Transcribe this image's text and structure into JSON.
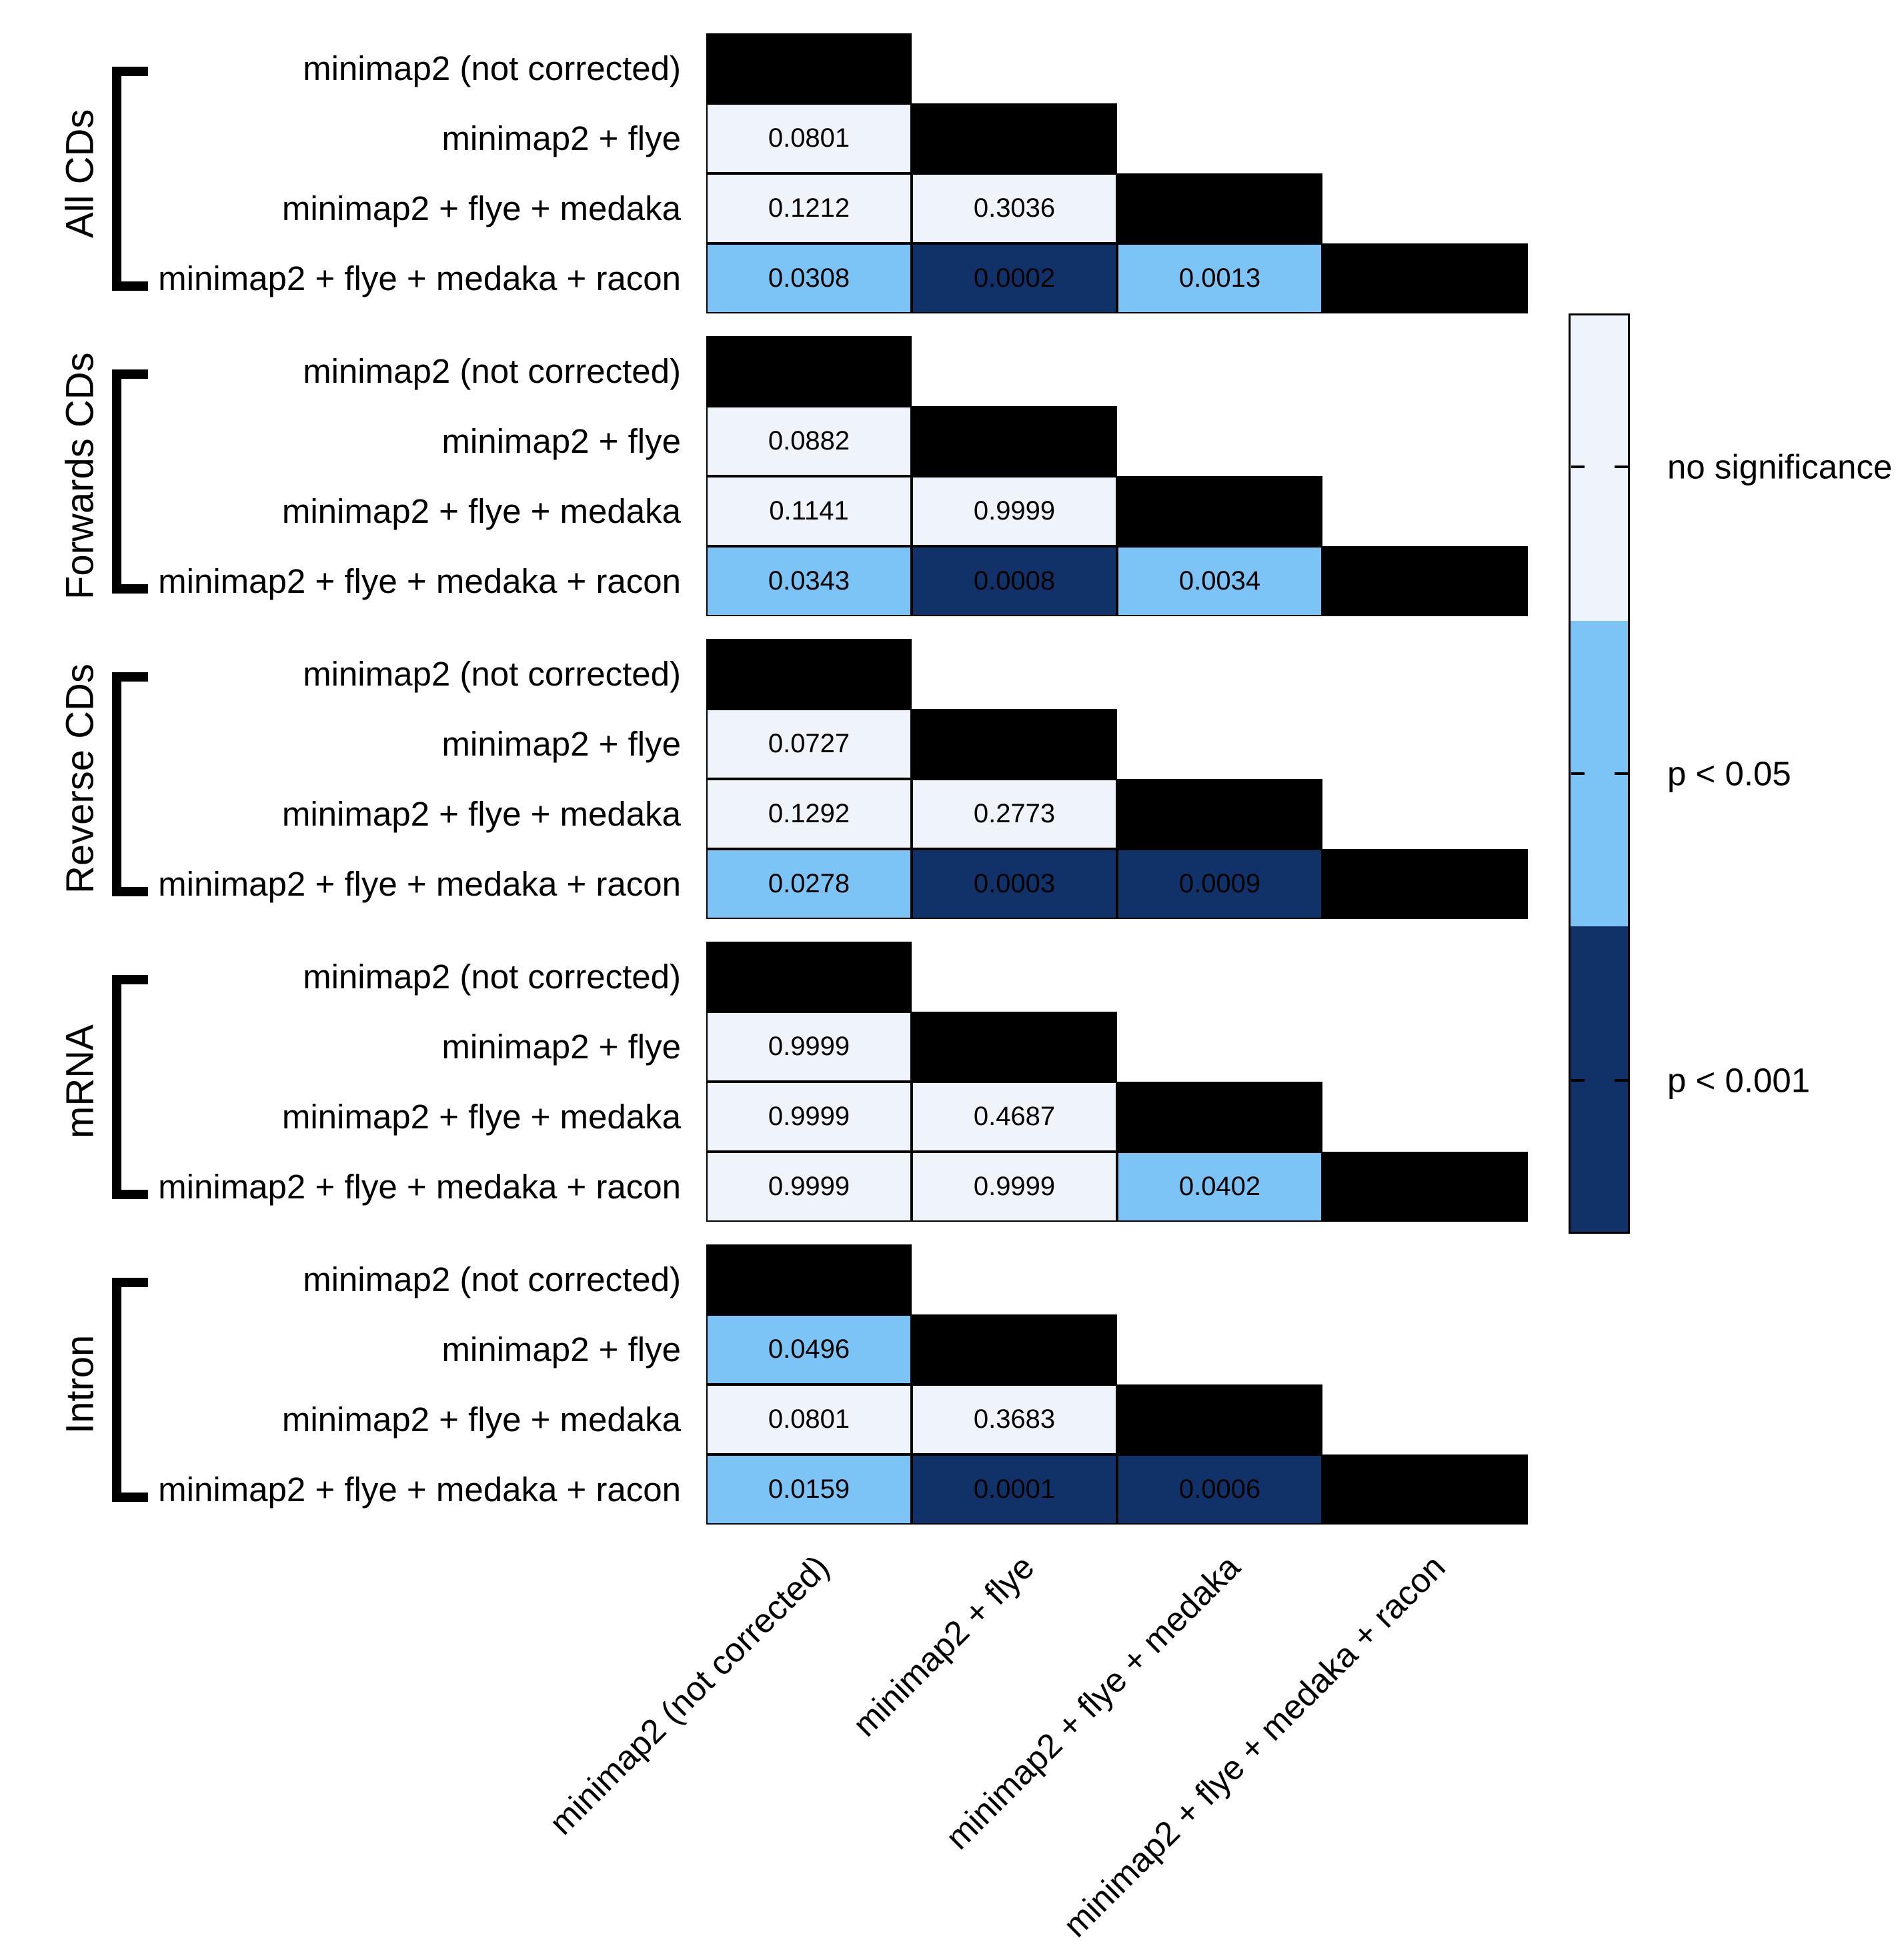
{
  "chart_data": {
    "type": "heatmap",
    "description": "Lower-triangle matrices of pairwise p-values comparing read-correction pipelines for five feature types",
    "columns": [
      "minimap2 (not corrected)",
      "minimap2 + flye",
      "minimap2 + flye + medaka",
      "minimap2 + flye + medaka + racon"
    ],
    "rows": [
      "minimap2 (not corrected)",
      "minimap2 + flye",
      "minimap2 + flye + medaka",
      "minimap2 + flye + medaka + racon"
    ],
    "diagonal_color": "#000000",
    "sig_colors": {
      "none": "#EFF4FB",
      "p<0.05": "#7CC4F6",
      "p<0.001": "#103269"
    },
    "legend": {
      "position": "right",
      "entries": [
        {
          "label": "no significance",
          "color": "#EFF4FB"
        },
        {
          "label": "p < 0.05",
          "color": "#7CC4F6"
        },
        {
          "label": "p < 0.001",
          "color": "#103269"
        }
      ]
    },
    "groups": [
      {
        "name": "All CDs",
        "cells": [
          [],
          [
            {
              "value": "0.0801",
              "sig": "none"
            }
          ],
          [
            {
              "value": "0.1212",
              "sig": "none"
            },
            {
              "value": "0.3036",
              "sig": "none"
            }
          ],
          [
            {
              "value": "0.0308",
              "sig": "p<0.05"
            },
            {
              "value": "0.0002",
              "sig": "p<0.001"
            },
            {
              "value": "0.0013",
              "sig": "p<0.05"
            }
          ]
        ]
      },
      {
        "name": "Forwards CDs",
        "cells": [
          [],
          [
            {
              "value": "0.0882",
              "sig": "none"
            }
          ],
          [
            {
              "value": "0.1141",
              "sig": "none"
            },
            {
              "value": "0.9999",
              "sig": "none"
            }
          ],
          [
            {
              "value": "0.0343",
              "sig": "p<0.05"
            },
            {
              "value": "0.0008",
              "sig": "p<0.001"
            },
            {
              "value": "0.0034",
              "sig": "p<0.05"
            }
          ]
        ]
      },
      {
        "name": "Reverse CDs",
        "cells": [
          [],
          [
            {
              "value": "0.0727",
              "sig": "none"
            }
          ],
          [
            {
              "value": "0.1292",
              "sig": "none"
            },
            {
              "value": "0.2773",
              "sig": "none"
            }
          ],
          [
            {
              "value": "0.0278",
              "sig": "p<0.05"
            },
            {
              "value": "0.0003",
              "sig": "p<0.001"
            },
            {
              "value": "0.0009",
              "sig": "p<0.001"
            }
          ]
        ]
      },
      {
        "name": "mRNA",
        "cells": [
          [],
          [
            {
              "value": "0.9999",
              "sig": "none"
            }
          ],
          [
            {
              "value": "0.9999",
              "sig": "none"
            },
            {
              "value": "0.4687",
              "sig": "none"
            }
          ],
          [
            {
              "value": "0.9999",
              "sig": "none"
            },
            {
              "value": "0.9999",
              "sig": "none"
            },
            {
              "value": "0.0402",
              "sig": "p<0.05"
            }
          ]
        ]
      },
      {
        "name": "Intron",
        "cells": [
          [],
          [
            {
              "value": "0.0496",
              "sig": "p<0.05"
            }
          ],
          [
            {
              "value": "0.0801",
              "sig": "none"
            },
            {
              "value": "0.3683",
              "sig": "none"
            }
          ],
          [
            {
              "value": "0.0159",
              "sig": "p<0.05"
            },
            {
              "value": "0.0001",
              "sig": "p<0.001"
            },
            {
              "value": "0.0006",
              "sig": "p<0.001"
            }
          ]
        ]
      }
    ]
  }
}
